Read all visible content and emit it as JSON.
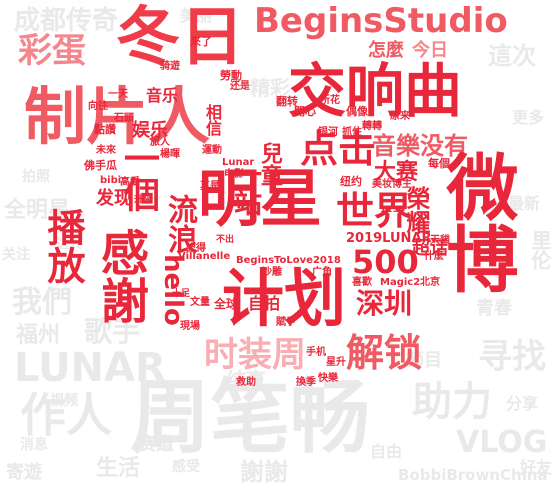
{
  "words": {
    "zhoubichang": "周笔畅",
    "chengdu": "成都传奇",
    "caidan": "彩蛋",
    "zhibei": "制片人",
    "dongri": "冬日",
    "begins": "BeginsStudio",
    "jiaoxiangqu": "交响曲",
    "mingxing": "明星",
    "dianji": "点击",
    "yinle_meiyou": "音樂没有",
    "weibo": "微博",
    "bofang": "播放",
    "ganxie": "感謝",
    "jihua": "计划",
    "shijie": "世界",
    "n500": "500",
    "shenzhen": "深圳",
    "shizhuangzhou": "时装周",
    "jiesuo": "解锁",
    "hello": "hello",
    "liulang": "流浪",
    "yige": "一個",
    "yizhan": "一站",
    "ertong": "兒童",
    "dasai": "大赛",
    "rongyao": "榮耀",
    "lunar2019": "2019LUNAR",
    "chaohua": "超话",
    "lunar": "LUNAR",
    "zuoren": "作人",
    "women": "我們",
    "fuzhou": "福州",
    "geshou": "歌手",
    "vlog": "VLOG",
    "zhuli": "助力",
    "xunzhao": "寻找",
    "zenme": "怎麼",
    "jinri": "今日",
    "zheci": "這次",
    "yinyue": "音乐",
    "yule": "娱乐",
    "xiangxin": "相信",
    "faxian": "发现",
    "zipai": "自拍",
    "begins2018": "BeginsToLove2018",
    "villanelle": "Villanelle",
    "shengsheng": "生活",
    "quanqiu": "全球",
    "jiaoji": "寄遊",
    "bobbi": "BobbiBrownChina",
    "xieyang": "謝謝",
    "quanmingxing": "全明星",
    "xuxing": "旭行",
    "xiangshou": "纯享",
    "jiemu": "節目",
    "ganshou": "感受",
    "yinyue2": "音乐",
    "shipin": "视频",
    "ziyou": "自由",
    "sai": "赛道",
    "gengduo": "更多",
    "lilun": "里伦",
    "qingchun": "青春",
    "zuixin": "最新",
    "xiaomi": "消息",
    "guanzhu": "关注",
    "daren": "达人",
    "paizhao": "拍照",
    "meili": "美丽",
    "jingcai": "精彩",
    "fenxiang": "分享",
    "haoyou": "好友",
    "niuyue": "纽约",
    "meizhuang": "美妆博主",
    "magic2": "Magic2",
    "beijing": "北京",
    "xihuan": "喜歡",
    "tianmao": "天貓",
    "shenme": "什麽",
    "shapeng": "沙雕",
    "guangjiao": "广角",
    "wenliang": "文量",
    "xianchang": "現場",
    "fuzi": "賦予",
    "shouji": "手机",
    "kuaile": "快樂",
    "jiuyuan": "救助",
    "huanji": "換季",
    "xinyu": "星升",
    "fanzhuan": "翻转",
    "kaixin": "開心",
    "suohua": "所花",
    "yinhe": "银河",
    "zhuaizhu": "抓住",
    "zhuanzhuan": "轉轉",
    "meige": "每個",
    "yuanle": "原来",
    "ouxiang": "偶像",
    "zhenshi": "真是",
    "diandian": "电影",
    "lunar_small": "Lunar",
    "yundong": "運動",
    "huanying": "还是",
    "xiaogan": "勞動",
    "yitian": "一天",
    "shishi": "石頭",
    "xiangwang": "向往",
    "dianzan": "點讚",
    "weilai": "未來",
    "yangjian": "楊暉",
    "lvren": "旅人",
    "foshouqua": "佛手瓜",
    "bibi": "bibi",
    "gaoqing": "高愛",
    "shengji": "升級",
    "jilu": "記得",
    "budong": "不出",
    "shiwu": "十足",
    "laile": "來了",
    "qiyou": "骑遊",
    "n1234": "1234",
    "mingxing2": "明星",
    "huabian": "花边",
    "zhuli2": "助理",
    "nengliang": "能量",
    "shiyuan": "至遠"
  }
}
